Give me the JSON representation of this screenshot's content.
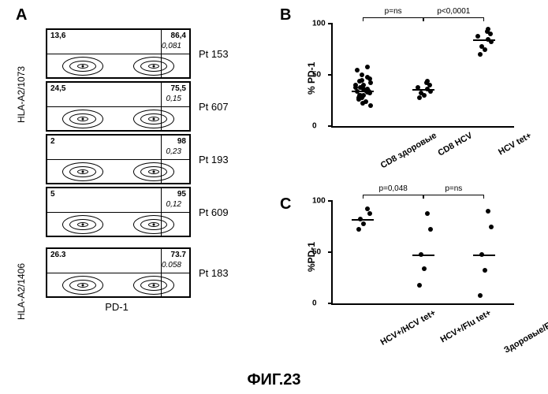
{
  "panel_labels": {
    "a": "A",
    "b": "B",
    "c": "C"
  },
  "panel_a": {
    "y_axis_groups": [
      {
        "label": "HLA-A2/1073",
        "plots": [
          {
            "q1": "13,6",
            "q2": "86,4",
            "italic": "0,081",
            "pt": "Pt 153"
          },
          {
            "q1": "24,5",
            "q2": "75,5",
            "italic": "0,15",
            "pt": "Pt 607"
          },
          {
            "q1": "2",
            "q2": "98",
            "italic": "0,23",
            "pt": "Pt 193"
          },
          {
            "q1": "5",
            "q2": "95",
            "italic": "0,12",
            "pt": "Pt 609"
          }
        ]
      },
      {
        "label": "HLA-A2/1406",
        "plots": [
          {
            "q1": "26.3",
            "q2": "73.7",
            "italic": "0.058",
            "pt": "Pt 183"
          }
        ]
      }
    ],
    "x_axis_label": "PD-1"
  },
  "panel_b": {
    "type": "scatter",
    "y_label": "% PD-1",
    "y_ticks": [
      0,
      50,
      100
    ],
    "ylim": [
      0,
      100
    ],
    "sig_labels": [
      {
        "text": "p=ns",
        "from_cat": 0,
        "to_cat": 1
      },
      {
        "text": "p<0,0001",
        "from_cat": 1,
        "to_cat": 2
      }
    ],
    "categories": [
      {
        "label": "CD8 здоровые",
        "points": [
          28,
          30,
          30,
          32,
          33,
          34,
          34,
          35,
          35,
          36,
          36,
          24,
          26,
          28,
          30,
          38,
          38,
          40,
          40,
          42,
          44,
          46,
          48,
          50,
          55,
          58,
          20,
          22,
          45,
          38
        ],
        "median": 35
      },
      {
        "label": "CD8 HCV",
        "points": [
          28,
          30,
          32,
          34,
          36,
          38,
          40,
          42,
          44
        ],
        "median": 36
      },
      {
        "label": "HCV tet+",
        "points": [
          70,
          75,
          78,
          82,
          85,
          88,
          90,
          92,
          95
        ],
        "median": 85
      }
    ]
  },
  "panel_c": {
    "type": "scatter",
    "y_label": "%PD-1",
    "y_ticks": [
      0,
      50,
      100
    ],
    "ylim": [
      0,
      100
    ],
    "sig_labels": [
      {
        "text": "p=0,048",
        "from_cat": 0,
        "to_cat": 1
      },
      {
        "text": "p=ns",
        "from_cat": 1,
        "to_cat": 2
      }
    ],
    "categories": [
      {
        "label": "HCV+/HCV tet+",
        "points": [
          72,
          78,
          82,
          88,
          92
        ],
        "median": 82
      },
      {
        "label": "HCV+/Flu tet+",
        "points": [
          18,
          34,
          48,
          72,
          88
        ],
        "median": 48
      },
      {
        "label": "Здоровые/Flu tet+",
        "points": [
          8,
          32,
          48,
          75,
          90
        ],
        "median": 48
      }
    ]
  },
  "figure_caption": "ФИГ.23",
  "colors": {
    "point": "#000000",
    "line": "#000000",
    "background": "#ffffff"
  }
}
